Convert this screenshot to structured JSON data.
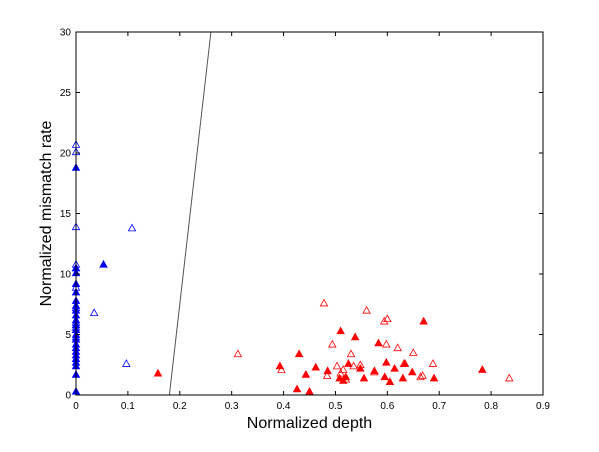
{
  "chart_data": {
    "type": "scatter",
    "title": "",
    "xlabel": "Normalized depth",
    "ylabel": "Normalized mismatch rate",
    "xlim": [
      0,
      0.9
    ],
    "ylim": [
      0,
      30
    ],
    "xticks": [
      0,
      0.1,
      0.2,
      0.3,
      0.4,
      0.5,
      0.6,
      0.7,
      0.8,
      0.9
    ],
    "xtick_labels": [
      "0",
      "0.1",
      "0.2",
      "0.3",
      "0.4",
      "0.5",
      "0.6",
      "0.7",
      "0.8",
      "0.9"
    ],
    "yticks": [
      0,
      5,
      10,
      15,
      20,
      25,
      30
    ],
    "ytick_labels": [
      "0",
      "5",
      "10",
      "15",
      "20",
      "25",
      "30"
    ],
    "grid": false,
    "colors": {
      "blue": "#0000ff",
      "red": "#ff0000",
      "line": "#555555"
    },
    "boundary_line": {
      "x": [
        0.18,
        0.26
      ],
      "y": [
        0,
        30
      ]
    },
    "series": [
      {
        "color": "blue",
        "marker": "triangle",
        "filled": true,
        "x": [
          0,
          0,
          0,
          0,
          0,
          0,
          0,
          0,
          0,
          0,
          0,
          0,
          0,
          0,
          0,
          0,
          0,
          0,
          0,
          0,
          0,
          0,
          0,
          0.053
        ],
        "y": [
          0.3,
          1.7,
          2.4,
          2.7,
          3.0,
          3.3,
          3.6,
          3.9,
          4.2,
          4.6,
          5.0,
          5.4,
          5.8,
          6.2,
          6.6,
          7.0,
          7.4,
          7.8,
          8.5,
          9.2,
          10.1,
          10.5,
          18.8,
          10.8
        ]
      },
      {
        "color": "blue",
        "marker": "triangle",
        "filled": false,
        "x": [
          0,
          0,
          0,
          0,
          0,
          0,
          0,
          0,
          0,
          0,
          0.035,
          0.097,
          0.108
        ],
        "y": [
          20.7,
          20.1,
          13.9,
          10.8,
          10.5,
          8.9,
          7.2,
          6.0,
          5.6,
          4.8,
          6.8,
          2.6,
          13.8
        ]
      },
      {
        "color": "red",
        "marker": "triangle",
        "filled": true,
        "x": [
          0.158,
          0.393,
          0.426,
          0.43,
          0.443,
          0.45,
          0.462,
          0.485,
          0.508,
          0.51,
          0.515,
          0.52,
          0.525,
          0.538,
          0.548,
          0.555,
          0.575,
          0.583,
          0.595,
          0.598,
          0.605,
          0.614,
          0.63,
          0.634,
          0.648,
          0.67,
          0.69,
          0.783
        ],
        "y": [
          1.8,
          2.4,
          0.5,
          3.4,
          1.7,
          0.3,
          2.3,
          2.0,
          1.4,
          5.3,
          1.2,
          1.5,
          2.6,
          4.8,
          2.2,
          1.4,
          2.0,
          4.3,
          1.5,
          2.7,
          1.1,
          2.2,
          1.4,
          2.6,
          1.9,
          6.1,
          1.4,
          2.1
        ]
      },
      {
        "color": "red",
        "marker": "triangle",
        "filled": false,
        "x": [
          0.312,
          0.396,
          0.478,
          0.484,
          0.494,
          0.503,
          0.51,
          0.515,
          0.52,
          0.53,
          0.535,
          0.548,
          0.56,
          0.575,
          0.594,
          0.598,
          0.6,
          0.62,
          0.632,
          0.65,
          0.664,
          0.668,
          0.688,
          0.835
        ],
        "y": [
          3.4,
          2.1,
          7.6,
          1.6,
          4.2,
          2.4,
          1.8,
          2.1,
          1.3,
          3.4,
          2.4,
          2.5,
          7.0,
          1.9,
          6.1,
          4.2,
          6.3,
          3.9,
          2.6,
          3.5,
          1.5,
          1.6,
          2.6,
          1.4
        ]
      }
    ]
  }
}
